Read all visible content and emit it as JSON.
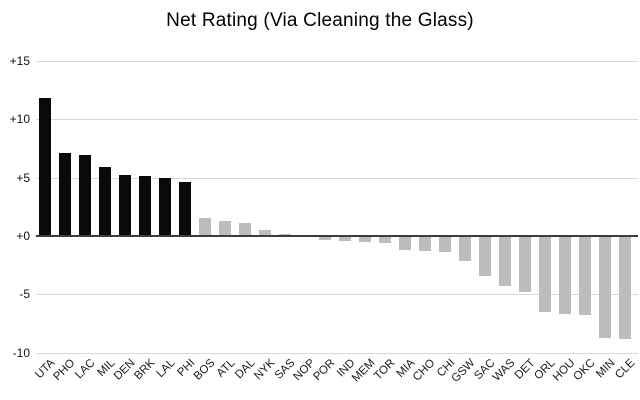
{
  "title": "Net Rating (Via Cleaning the Glass)",
  "colors": {
    "highlight_bar": "#0a0a0a",
    "default_bar": "#bdbdbd",
    "gridline": "#d9d9d9",
    "zero_line": "#3c3c3c",
    "background": "#ffffff",
    "text": "#000000"
  },
  "chart_data": {
    "type": "bar",
    "title": "Net Rating (Via Cleaning the Glass)",
    "xlabel": "",
    "ylabel": "",
    "categories": [
      "UTA",
      "PHO",
      "LAC",
      "MIL",
      "DEN",
      "BRK",
      "LAL",
      "PHI",
      "BOS",
      "ATL",
      "DAL",
      "NYK",
      "SAS",
      "NOP",
      "POR",
      "IND",
      "MEM",
      "TOR",
      "MIA",
      "CHO",
      "CHI",
      "GSW",
      "SAC",
      "WAS",
      "DET",
      "ORL",
      "HOU",
      "OKC",
      "MIN",
      "CLE"
    ],
    "values": [
      11.8,
      7.1,
      6.9,
      5.9,
      5.2,
      5.1,
      5.0,
      4.6,
      1.5,
      1.3,
      1.1,
      0.5,
      0.2,
      -0.1,
      -0.3,
      -0.4,
      -0.5,
      -0.6,
      -1.2,
      -1.3,
      -1.4,
      -2.1,
      -3.4,
      -4.3,
      -4.8,
      -6.5,
      -6.7,
      -6.8,
      -8.7,
      -8.8
    ],
    "highlighted_categories": [
      "UTA",
      "PHO",
      "LAC",
      "MIL",
      "DEN",
      "BRK",
      "LAL",
      "PHI"
    ],
    "bar_color_rule": "first 8 teams black, remainder light gray",
    "yticks": [
      {
        "label": "+15",
        "value": 15
      },
      {
        "label": "+10",
        "value": 10
      },
      {
        "label": "+5",
        "value": 5
      },
      {
        "label": "+0",
        "value": 0
      },
      {
        "label": "-5",
        "value": -5
      },
      {
        "label": "-10",
        "value": -10
      }
    ],
    "ylim": [
      -10,
      15
    ],
    "grid": true,
    "legend": false,
    "sort_order": "descending"
  }
}
